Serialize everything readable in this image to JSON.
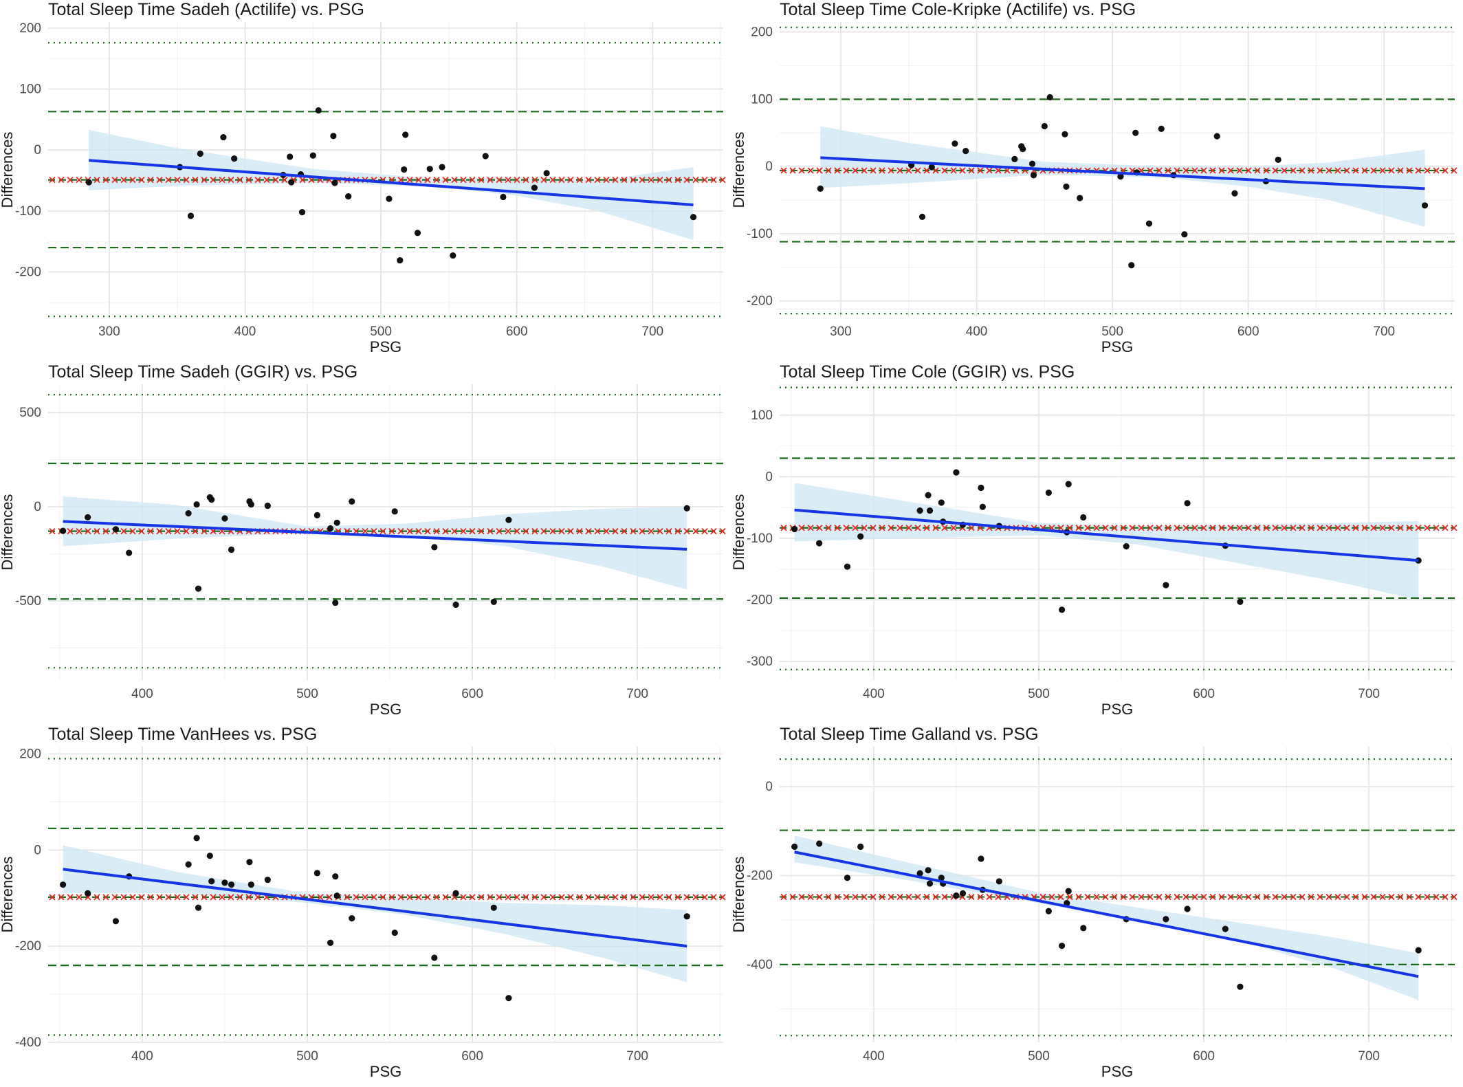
{
  "colors": {
    "points": "#111111",
    "fit_line": "#1636e6",
    "ci_band": "#cde6f2",
    "limits": "#1a6b1a",
    "mean_line": "#1a6b1a",
    "mean_markers": "#e0281e",
    "grid": "#e6e6e6"
  },
  "chart_data": [
    {
      "type": "scatter",
      "title": "Total Sleep Time Sadeh (Actilife) vs. PSG",
      "xlabel": "PSG",
      "ylabel": "Differences",
      "xlim": [
        255,
        752
      ],
      "ylim": [
        -275,
        210
      ],
      "xticks": [
        300,
        400,
        500,
        600,
        700
      ],
      "yticks": [
        -200,
        -100,
        0,
        100,
        200
      ],
      "x": [
        285,
        352,
        360,
        367,
        384,
        392,
        428,
        433,
        434,
        441,
        442,
        450,
        454,
        465,
        466,
        476,
        506,
        514,
        517,
        518,
        527,
        536,
        545,
        553,
        577,
        590,
        613,
        622,
        730
      ],
      "y": [
        -53,
        -28,
        -108,
        -6,
        21,
        -14,
        -41,
        -11,
        -53,
        -40,
        -102,
        -9,
        65,
        23,
        -54,
        -76,
        -80,
        -181,
        -32,
        25,
        -136,
        -31,
        -28,
        -173,
        -10,
        -77,
        -62,
        -38,
        -110
      ],
      "fit": {
        "x": [
          285,
          730
        ],
        "y": [
          -17,
          -90
        ]
      },
      "ci_band": {
        "x": [
          285,
          350,
          450,
          540,
          600,
          660,
          730
        ],
        "lower": [
          -66,
          -59,
          -54,
          -60,
          -75,
          -100,
          -148
        ],
        "upper": [
          33,
          3,
          -31,
          -47,
          -45,
          -50,
          -28
        ]
      },
      "mean_diff": -49,
      "limits_of_agreement": [
        63,
        -160
      ],
      "ci_limits": [
        176,
        -273
      ]
    },
    {
      "type": "scatter",
      "title": "Total Sleep Time Cole-Kripke (Actilife) vs. PSG",
      "xlabel": "PSG",
      "ylabel": "Differences",
      "xlim": [
        255,
        752
      ],
      "ylim": [
        -225,
        215
      ],
      "xticks": [
        300,
        400,
        500,
        600,
        700
      ],
      "yticks": [
        -200,
        -100,
        0,
        100,
        200
      ],
      "x": [
        285,
        352,
        360,
        367,
        384,
        392,
        428,
        433,
        434,
        441,
        442,
        450,
        454,
        465,
        466,
        476,
        506,
        514,
        517,
        518,
        527,
        536,
        545,
        553,
        577,
        590,
        613,
        622,
        730
      ],
      "y": [
        -33,
        2,
        -75,
        -1,
        34,
        23,
        11,
        30,
        26,
        4,
        -13,
        60,
        103,
        48,
        -30,
        -47,
        -15,
        -147,
        50,
        -9,
        -85,
        56,
        -13,
        -101,
        45,
        -40,
        -22,
        10,
        -58
      ],
      "fit": {
        "x": [
          285,
          730
        ],
        "y": [
          13,
          -33
        ]
      },
      "ci_band": {
        "x": [
          285,
          350,
          450,
          540,
          600,
          660,
          730
        ],
        "lower": [
          -32,
          -25,
          -12,
          -17,
          -30,
          -50,
          -90
        ],
        "upper": [
          60,
          35,
          7,
          0,
          0,
          6,
          25
        ]
      },
      "mean_diff": -6,
      "limits_of_agreement": [
        100,
        -112
      ],
      "ci_limits": [
        207,
        -219
      ]
    },
    {
      "type": "scatter",
      "title": "Total Sleep Time Sadeh (GGIR) vs. PSG",
      "xlabel": "PSG",
      "ylabel": "Differences",
      "xlim": [
        343,
        752
      ],
      "ylim": [
        -920,
        650
      ],
      "xticks": [
        400,
        500,
        600,
        700
      ],
      "yticks": [
        -500,
        0,
        500
      ],
      "x": [
        352,
        367,
        384,
        392,
        428,
        433,
        434,
        441,
        442,
        450,
        454,
        465,
        466,
        476,
        506,
        514,
        517,
        518,
        527,
        553,
        577,
        590,
        613,
        622,
        730
      ],
      "y": [
        -128,
        -56,
        -120,
        -245,
        -35,
        12,
        -435,
        50,
        38,
        -62,
        -228,
        28,
        12,
        5,
        -45,
        -115,
        -510,
        -85,
        28,
        -25,
        -215,
        -520,
        -505,
        -70,
        -8
      ],
      "fit": {
        "x": [
          352,
          730
        ],
        "y": [
          -78,
          -226
        ]
      },
      "ci_band": {
        "x": [
          352,
          420,
          500,
          560,
          620,
          680,
          730
        ],
        "lower": [
          -210,
          -170,
          -140,
          -150,
          -210,
          -320,
          -440
        ],
        "upper": [
          55,
          10,
          -105,
          -90,
          -40,
          -10,
          0
        ]
      },
      "mean_diff": -130,
      "limits_of_agreement": [
        230,
        -490
      ],
      "ci_limits": [
        595,
        -855
      ]
    },
    {
      "type": "scatter",
      "title": "Total Sleep Time Cole (GGIR) vs. PSG",
      "xlabel": "PSG",
      "ylabel": "Differences",
      "xlim": [
        343,
        752
      ],
      "ylim": [
        -330,
        150
      ],
      "xticks": [
        400,
        500,
        600,
        700
      ],
      "yticks": [
        -300,
        -200,
        -100,
        0,
        100
      ],
      "x": [
        352,
        367,
        384,
        392,
        428,
        433,
        434,
        441,
        442,
        450,
        454,
        465,
        466,
        476,
        506,
        514,
        517,
        518,
        527,
        553,
        577,
        590,
        613,
        622,
        730
      ],
      "y": [
        -85,
        -108,
        -146,
        -97,
        -55,
        -30,
        -55,
        -42,
        -73,
        7,
        -78,
        -18,
        -49,
        -80,
        -26,
        -216,
        -90,
        -12,
        -66,
        -113,
        -176,
        -43,
        -112,
        -203,
        -136
      ],
      "fit": {
        "x": [
          352,
          730
        ],
        "y": [
          -54,
          -136
        ]
      },
      "ci_band": {
        "x": [
          352,
          420,
          500,
          560,
          620,
          680,
          730
        ],
        "lower": [
          -105,
          -100,
          -95,
          -110,
          -140,
          -170,
          -200
        ],
        "upper": [
          -10,
          -40,
          -75,
          -80,
          -78,
          -75,
          -72
        ]
      },
      "mean_diff": -83,
      "limits_of_agreement": [
        30,
        -197
      ],
      "ci_limits": [
        145,
        -313
      ]
    },
    {
      "type": "scatter",
      "title": "Total Sleep Time VanHees vs. PSG",
      "xlabel": "PSG",
      "ylabel": "Differences",
      "xlim": [
        343,
        752
      ],
      "ylim": [
        -400,
        215
      ],
      "xticks": [
        400,
        500,
        600,
        700
      ],
      "yticks": [
        -400,
        -200,
        0,
        200
      ],
      "x": [
        352,
        367,
        384,
        392,
        428,
        433,
        434,
        441,
        442,
        450,
        454,
        465,
        466,
        476,
        506,
        514,
        517,
        518,
        527,
        553,
        577,
        590,
        613,
        622,
        730
      ],
      "y": [
        -72,
        -90,
        -148,
        -55,
        -30,
        25,
        -120,
        -12,
        -65,
        -68,
        -72,
        -25,
        -72,
        -62,
        -48,
        -193,
        -55,
        -95,
        -142,
        -172,
        -224,
        -90,
        -120,
        -308,
        -138
      ],
      "fit": {
        "x": [
          352,
          730
        ],
        "y": [
          -40,
          -200
        ]
      },
      "ci_band": {
        "x": [
          352,
          420,
          500,
          560,
          620,
          680,
          730
        ],
        "lower": [
          -90,
          -90,
          -110,
          -135,
          -175,
          -225,
          -275
        ],
        "upper": [
          10,
          -45,
          -90,
          -100,
          -110,
          -115,
          -125
        ]
      },
      "mean_diff": -98,
      "limits_of_agreement": [
        45,
        -240
      ],
      "ci_limits": [
        190,
        -385
      ]
    },
    {
      "type": "scatter",
      "title": "Total Sleep Time Galland vs. PSG",
      "xlabel": "PSG",
      "ylabel": "Differences",
      "xlim": [
        343,
        752
      ],
      "ylim": [
        -575,
        90
      ],
      "xticks": [
        400,
        500,
        600,
        700
      ],
      "yticks": [
        -400,
        -200,
        0
      ],
      "x": [
        352,
        367,
        384,
        392,
        428,
        433,
        434,
        441,
        442,
        450,
        454,
        465,
        466,
        476,
        506,
        514,
        517,
        518,
        527,
        553,
        577,
        590,
        613,
        622,
        730
      ],
      "y": [
        -135,
        -128,
        -205,
        -135,
        -195,
        -188,
        -218,
        -205,
        -218,
        -245,
        -240,
        -162,
        -232,
        -213,
        -280,
        -358,
        -262,
        -235,
        -318,
        -298,
        -298,
        -275,
        -320,
        -450,
        -368
      ],
      "fit": {
        "x": [
          352,
          730
        ],
        "y": [
          -147,
          -427
        ]
      },
      "ci_band": {
        "x": [
          352,
          420,
          500,
          560,
          620,
          680,
          730
        ],
        "lower": [
          -170,
          -210,
          -262,
          -302,
          -345,
          -410,
          -480
        ],
        "upper": [
          -110,
          -170,
          -238,
          -272,
          -305,
          -340,
          -375
        ]
      },
      "mean_diff": -248,
      "limits_of_agreement": [
        -98,
        -400
      ],
      "ci_limits": [
        62,
        -560
      ]
    }
  ]
}
